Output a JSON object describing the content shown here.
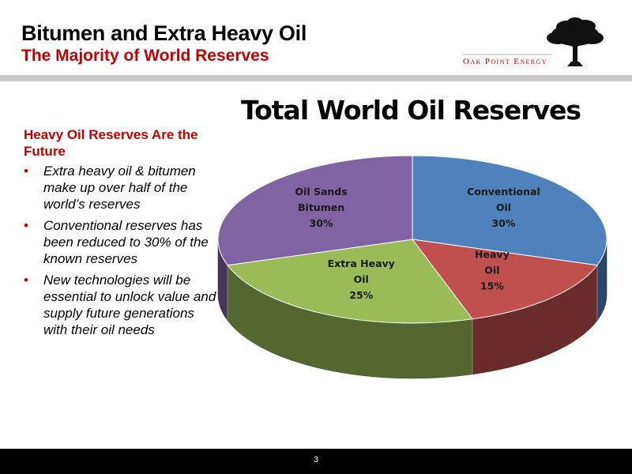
{
  "header": {
    "title": "Bitumen and Extra Heavy Oil",
    "subtitle": "The Majority of World Reserves",
    "logo_text": "Oak Point Energy"
  },
  "sidebar": {
    "heading": "Heavy Oil Reserves Are the Future",
    "bullets": [
      "Extra heavy oil & bitumen make up over half of the world’s reserves",
      "Conventional reserves has been reduced to 30% of the known reserves",
      "New technologies will be essential to unlock value and supply future generations with their oil needs"
    ]
  },
  "footer": {
    "page_number": "3"
  },
  "colors": {
    "accent": "#c00000",
    "conventional": "#4f81bd",
    "heavy": "#c0504d",
    "extra_heavy": "#9bbb59",
    "bitumen": "#8064a2"
  },
  "chart_data": {
    "type": "pie",
    "title": "Total World Oil Reserves",
    "slices": [
      {
        "label": [
          "Conventional",
          "Oil"
        ],
        "value": 30,
        "value_label": "30%",
        "color": "#4f81bd"
      },
      {
        "label": [
          "Heavy",
          "Oil"
        ],
        "value": 15,
        "value_label": "15%",
        "color": "#c0504d"
      },
      {
        "label": [
          "Extra Heavy",
          "Oil"
        ],
        "value": 25,
        "value_label": "25%",
        "color": "#9bbb59"
      },
      {
        "label": [
          "Oil Sands",
          "Bitumen"
        ],
        "value": 30,
        "value_label": "30%",
        "color": "#8064a2"
      }
    ]
  }
}
